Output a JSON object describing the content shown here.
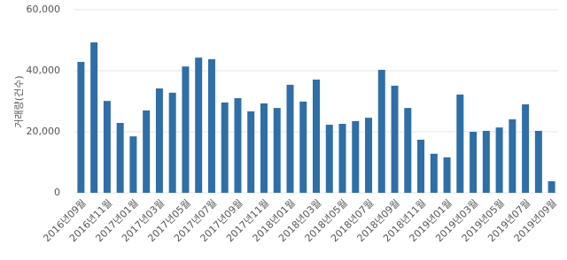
{
  "chart_data": {
    "type": "bar",
    "y_label": "거래량(건수)",
    "color": "#2e6fa7",
    "categories": [
      "2016년09월",
      null,
      "2016년11월",
      null,
      "2017년01월",
      null,
      "2017년03월",
      null,
      "2017년05월",
      null,
      "2017년07월",
      null,
      "2017년09월",
      null,
      "2017년11월",
      null,
      "2018년01월",
      null,
      "2018년03월",
      null,
      "2018년05월",
      null,
      "2018년07월",
      null,
      "2018년09월",
      null,
      "2018년11월",
      null,
      "2019년01월",
      null,
      "2019년03월",
      null,
      "2019년05월",
      null,
      "2019년07월",
      null,
      "2019년09월"
    ],
    "values": [
      42900,
      49300,
      30100,
      22900,
      18500,
      27000,
      34200,
      32800,
      41400,
      44300,
      43800,
      29600,
      31000,
      26700,
      29300,
      27800,
      35400,
      29900,
      37100,
      22300,
      22600,
      23500,
      24600,
      40300,
      35100,
      27800,
      17400,
      12800,
      11600,
      32200,
      20000,
      20300,
      21400,
      24100,
      29000,
      20300,
      3800
    ],
    "ylim": [
      0,
      60000
    ],
    "yticks": [
      0,
      {
        "value": 20000,
        "label": "20,000"
      },
      {
        "value": 40000,
        "label": "40,000"
      },
      {
        "value": 60000,
        "label": "60,000"
      }
    ],
    "grid": true
  }
}
